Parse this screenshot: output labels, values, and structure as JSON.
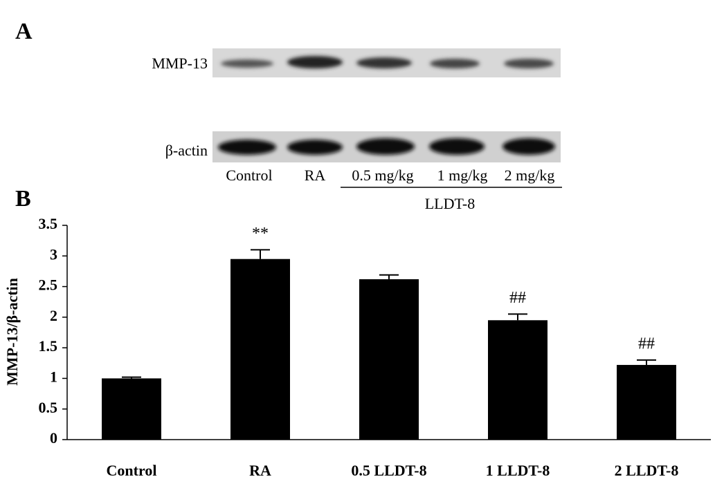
{
  "panel_a": {
    "label": "A",
    "rows": [
      "MMP-13",
      "β-actin"
    ],
    "lanes": [
      "Control",
      "RA",
      "0.5 mg/kg",
      "1 mg/kg",
      "2 mg/kg"
    ],
    "group": "LLDT-8"
  },
  "chart_data": {
    "type": "bar",
    "panel_label": "B",
    "ylabel": "MMP-13/β-actin",
    "categories": [
      "Control",
      "RA",
      "0.5 LLDT-8",
      "1 LLDT-8",
      "2 LLDT-8"
    ],
    "values": [
      1.0,
      2.95,
      2.62,
      1.95,
      1.22
    ],
    "errors": [
      0.02,
      0.15,
      0.07,
      0.1,
      0.08
    ],
    "significance": [
      null,
      "**",
      null,
      "##",
      "##"
    ],
    "color": "#000000",
    "ylim": [
      0,
      3.5
    ],
    "yticks": [
      0,
      0.5,
      1,
      1.5,
      2,
      2.5,
      3,
      3.5
    ],
    "grid": false
  }
}
